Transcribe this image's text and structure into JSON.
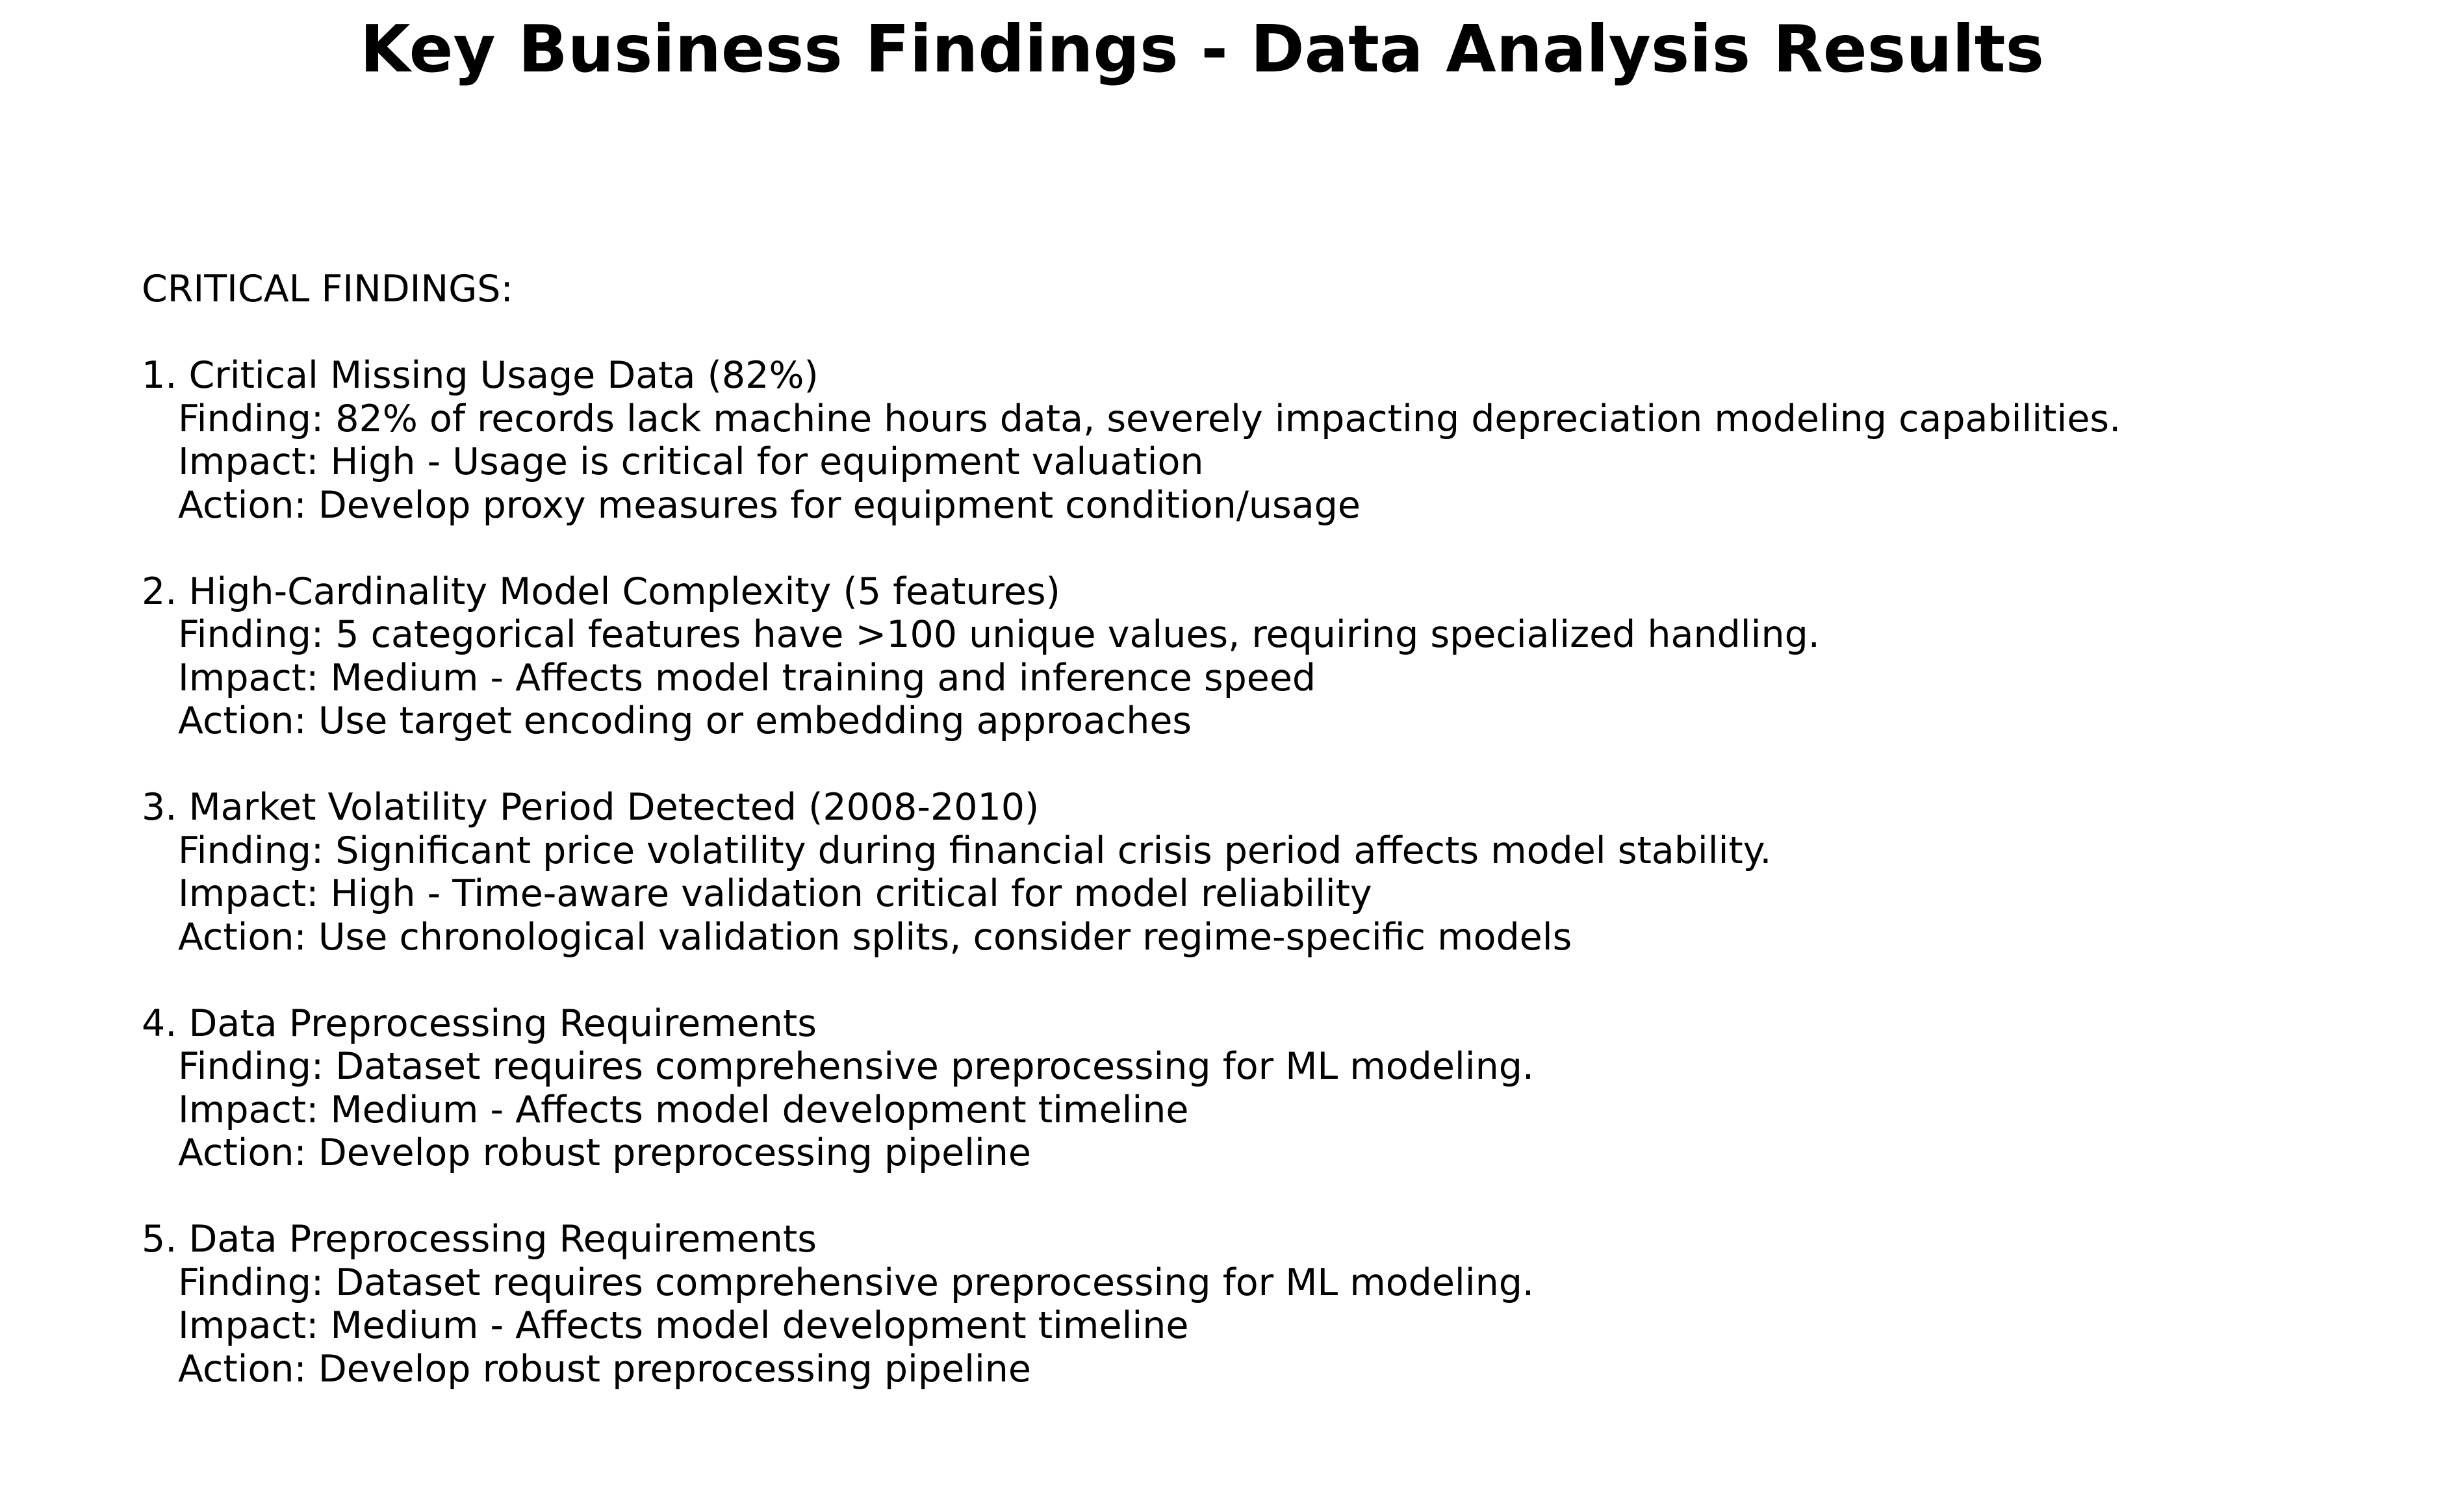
{
  "title": "Key Business Findings - Data Analysis Results",
  "section_heading": "CRITICAL FINDINGS:",
  "findings": [
    {
      "heading": "1. Critical Missing Usage Data (82%)",
      "finding": "Finding: 82% of records lack machine hours data, severely impacting depreciation modeling capabilities.",
      "impact": "Impact: High - Usage is critical for equipment valuation",
      "action": "Action: Develop proxy measures for equipment condition/usage"
    },
    {
      "heading": "2. High-Cardinality Model Complexity (5 features)",
      "finding": "Finding: 5 categorical features have >100 unique values, requiring specialized handling.",
      "impact": "Impact: Medium - Affects model training and inference speed",
      "action": "Action: Use target encoding or embedding approaches"
    },
    {
      "heading": "3. Market Volatility Period Detected (2008-2010)",
      "finding": "Finding: Significant price volatility during financial crisis period affects model stability.",
      "impact": "Impact: High - Time-aware validation critical for model reliability",
      "action": "Action: Use chronological validation splits, consider regime-specific models"
    },
    {
      "heading": "4. Data Preprocessing Requirements",
      "finding": "Finding: Dataset requires comprehensive preprocessing for ML modeling.",
      "impact": "Impact: Medium - Affects model development timeline",
      "action": "Action: Develop robust preprocessing pipeline"
    },
    {
      "heading": "5. Data Preprocessing Requirements",
      "finding": "Finding: Dataset requires comprehensive preprocessing for ML modeling.",
      "impact": "Impact: Medium - Affects model development timeline",
      "action": "Action: Develop robust preprocessing pipeline"
    }
  ]
}
